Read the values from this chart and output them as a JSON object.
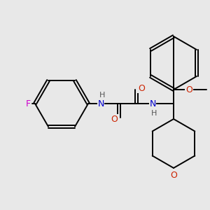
{
  "bg_color": "#e8e8e8",
  "bond_color": "#000000",
  "line_width": 1.4,
  "fig_size": [
    3.0,
    3.0
  ],
  "dpi": 100,
  "colors": {
    "F": "#cc00cc",
    "N": "#0000cc",
    "O": "#cc2200",
    "H": "#555555",
    "C": "#000000"
  }
}
